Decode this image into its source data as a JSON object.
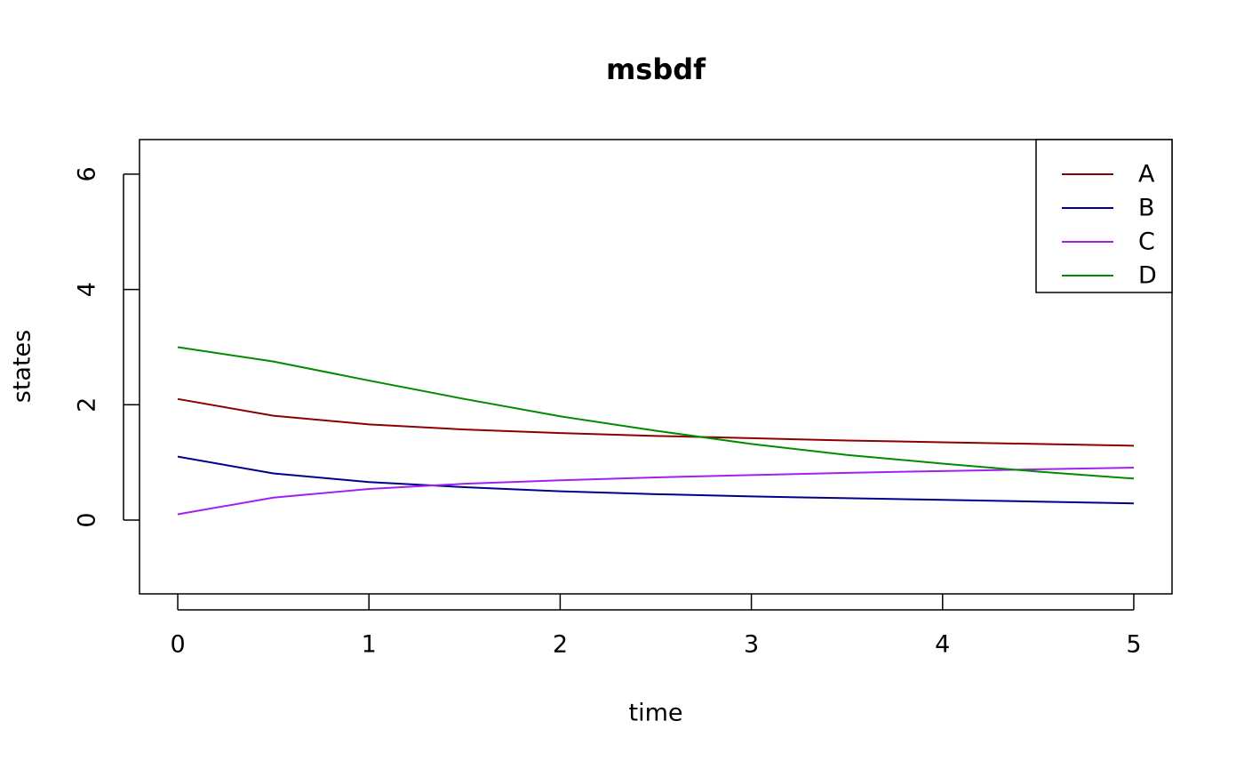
{
  "chart_data": {
    "type": "line",
    "title": "msbdf",
    "x_label": "time",
    "y_label": "states",
    "x": [
      0,
      0.5,
      1,
      1.5,
      2,
      2.5,
      3,
      3.5,
      4,
      4.5,
      5
    ],
    "series": [
      {
        "name": "A",
        "color": "#8b0000",
        "values": [
          2.1,
          1.81,
          1.66,
          1.57,
          1.51,
          1.46,
          1.42,
          1.38,
          1.35,
          1.32,
          1.29
        ]
      },
      {
        "name": "B",
        "color": "#00008b",
        "values": [
          1.1,
          0.81,
          0.66,
          0.57,
          0.5,
          0.45,
          0.41,
          0.38,
          0.35,
          0.32,
          0.29
        ]
      },
      {
        "name": "C",
        "color": "#a020f0",
        "values": [
          0.1,
          0.39,
          0.54,
          0.63,
          0.69,
          0.74,
          0.78,
          0.82,
          0.85,
          0.88,
          0.91
        ]
      },
      {
        "name": "D",
        "color": "#008b00",
        "values": [
          3.0,
          2.75,
          2.42,
          2.1,
          1.8,
          1.55,
          1.32,
          1.13,
          0.98,
          0.84,
          0.72
        ]
      }
    ],
    "xlim": [
      -0.2,
      5.2
    ],
    "xticks": [
      0,
      1,
      2,
      3,
      4,
      5
    ],
    "ylim": [
      -1.28,
      6.6
    ],
    "yticks": [
      0,
      2,
      4,
      6
    ],
    "legend": "top-right"
  }
}
